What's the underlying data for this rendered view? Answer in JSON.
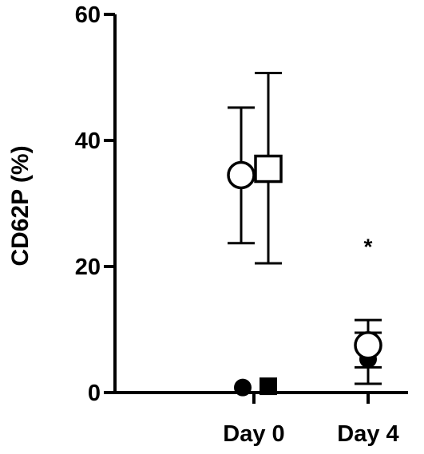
{
  "chart_data": {
    "type": "scatter",
    "ylabel": "CD62P (%)",
    "ylim": [
      0,
      60
    ],
    "yticks": [
      0,
      20,
      40,
      60
    ],
    "categories": [
      "Day 0",
      "Day 4"
    ],
    "grid": false,
    "series": [
      {
        "marker": "circle-open",
        "color": "#000000",
        "points": [
          {
            "category": "Day 0",
            "y": 34.5,
            "err_low": 23.7,
            "err_high": 45.2
          },
          {
            "category": "Day 4",
            "y": 7.5,
            "err_low": 4.0,
            "err_high": 11.5
          }
        ]
      },
      {
        "marker": "square-open",
        "color": "#000000",
        "points": [
          {
            "category": "Day 0",
            "y": 35.5,
            "err_low": 20.5,
            "err_high": 50.7
          }
        ]
      },
      {
        "marker": "circle-filled",
        "color": "#000000",
        "points": [
          {
            "category": "Day 0",
            "y": 0.8
          },
          {
            "category": "Day 4",
            "y": 5.3,
            "err_low": 1.4,
            "err_high": 9.5
          }
        ]
      },
      {
        "marker": "square-filled",
        "color": "#000000",
        "points": [
          {
            "category": "Day 0",
            "y": 1.0
          }
        ]
      }
    ],
    "annotations": [
      {
        "text": "*",
        "category": "Day 4",
        "y": 24
      }
    ]
  }
}
